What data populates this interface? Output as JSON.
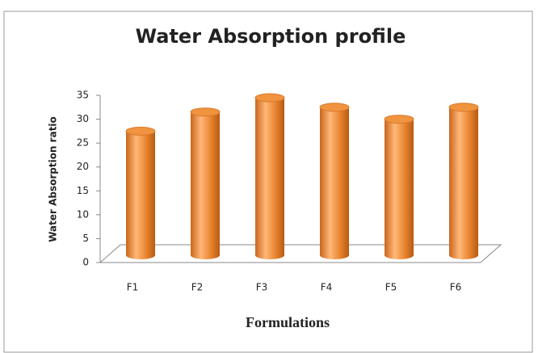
{
  "chart_data": {
    "type": "bar",
    "title": "Water Absorption profile",
    "x_label": "Formulations",
    "y_label": "Water Absorption ratio",
    "categories": [
      "F1",
      "F2",
      "F3",
      "F4",
      "F5",
      "F6"
    ],
    "values": [
      27.5,
      31.5,
      34.5,
      32.5,
      30,
      32.5
    ],
    "color": "#f0943f",
    "ylim": [
      0,
      35
    ],
    "yticks": [
      0,
      5,
      10,
      15,
      20,
      25,
      30,
      35
    ],
    "grid": false
  }
}
